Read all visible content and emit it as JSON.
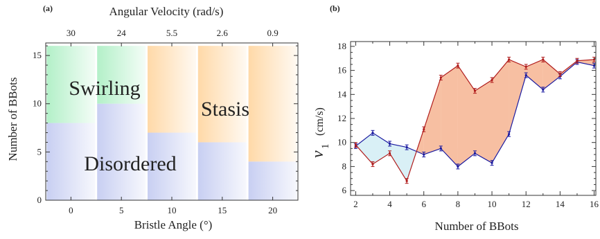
{
  "chart_data": [
    {
      "panel_label": "(a)",
      "type": "bar",
      "xlabel": "Bristle Angle (°)",
      "ylabel": "Number of BBots",
      "top_axis_label": "Angular Velocity (rad/s)",
      "categories": [
        "0",
        "5",
        "10",
        "15",
        "20"
      ],
      "top_tick_labels": [
        "30",
        "24",
        "5.5",
        "2.6",
        "0.9"
      ],
      "yticks": [
        "0",
        "5",
        "10",
        "15"
      ],
      "ylim": [
        0,
        16.3
      ],
      "series": [
        {
          "values": [
            8,
            10,
            7,
            6,
            4
          ],
          "color": "#c8cff2"
        },
        {
          "values": [
            16,
            16,
            16,
            16,
            16
          ],
          "color": "#cce8d8"
        }
      ],
      "upper_region_colors": [
        "#b3f0c8",
        "#b3f0c8",
        "#ffd9a8",
        "#ffd9a8",
        "#ffd9a8"
      ],
      "annotations": [
        {
          "text": "Swirling",
          "color": "#2e8b2e"
        },
        {
          "text": "Stasis",
          "color": "#b01c1c"
        },
        {
          "text": "Disordered",
          "color": "#1a237e"
        }
      ]
    },
    {
      "panel_label": "(b)",
      "type": "line",
      "xlabel": "Number of BBots",
      "ylabel_symbol": "v",
      "ylabel_subscript": "1",
      "ylabel_unit": "(cm/s)",
      "xlim": [
        1.7,
        16.1
      ],
      "ylim": [
        5.6,
        18.4
      ],
      "xticks": [
        "2",
        "4",
        "6",
        "8",
        "10",
        "12",
        "14",
        "16"
      ],
      "yticks": [
        "6",
        "8",
        "10",
        "12",
        "14",
        "16",
        "18"
      ],
      "x": [
        2,
        3,
        4,
        5,
        6,
        7,
        8,
        9,
        10,
        11,
        12,
        13,
        14,
        15,
        16
      ],
      "series": [
        {
          "color": "#1a1aa0",
          "values": [
            9.7,
            10.8,
            9.9,
            9.6,
            9.0,
            9.5,
            8.0,
            9.1,
            8.3,
            10.7,
            15.6,
            14.4,
            15.5,
            16.7,
            16.4
          ]
        },
        {
          "color": "#b01c1c",
          "values": [
            9.8,
            8.2,
            9.1,
            6.8,
            11.1,
            15.4,
            16.4,
            14.3,
            15.2,
            16.9,
            16.3,
            16.9,
            15.7,
            16.8,
            16.9
          ]
        }
      ],
      "fill_colors": {
        "red_above": "#f08a55",
        "blue_above": "#bfe6f0"
      }
    }
  ]
}
